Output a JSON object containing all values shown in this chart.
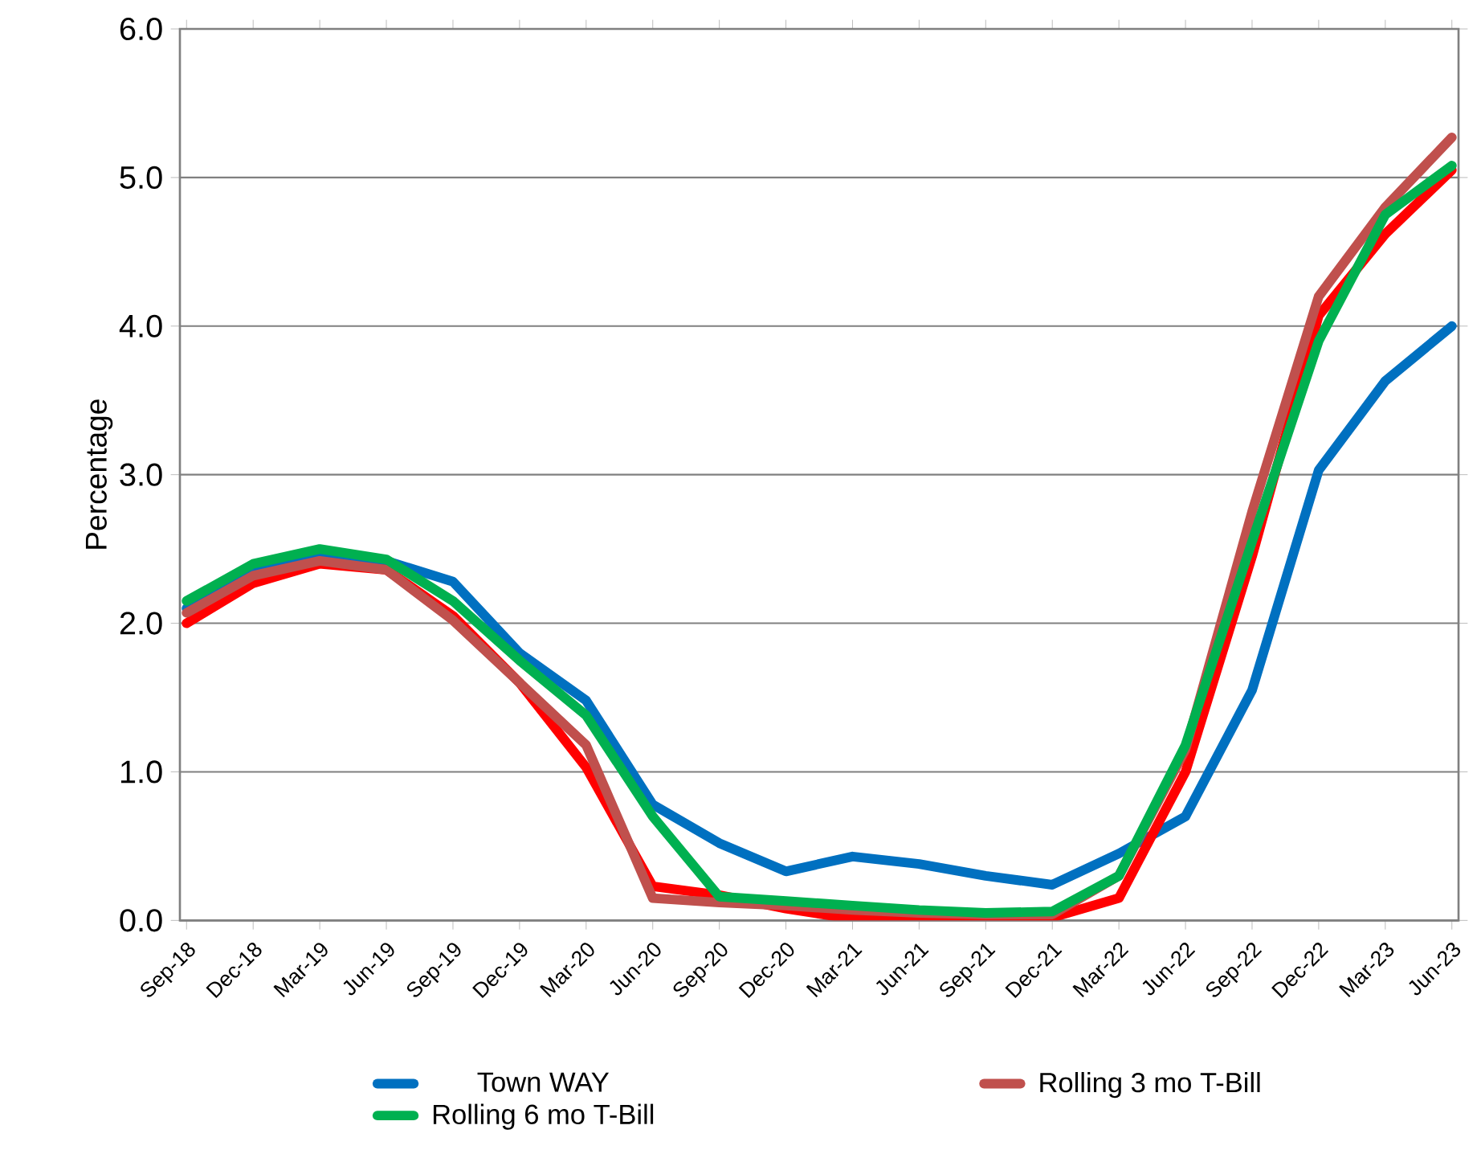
{
  "chart_data": {
    "type": "line",
    "ylabel": "Percentage",
    "categories": [
      "Sep-18",
      "Dec-18",
      "Mar-19",
      "Jun-19",
      "Sep-19",
      "Dec-19",
      "Mar-20",
      "Jun-20",
      "Sep-20",
      "Dec-20",
      "Mar-21",
      "Jun-21",
      "Sep-21",
      "Dec-21",
      "Mar-22",
      "Jun-22",
      "Sep-22",
      "Dec-22",
      "Mar-23",
      "Jun-23"
    ],
    "series": [
      {
        "name": "Town WAY",
        "color": "#0070c0",
        "values": [
          2.1,
          2.35,
          2.45,
          2.42,
          2.28,
          1.8,
          1.48,
          0.78,
          0.52,
          0.33,
          0.43,
          0.38,
          0.3,
          0.24,
          0.45,
          0.7,
          1.55,
          3.03,
          3.63,
          4.0
        ]
      },
      {
        "color": "#ff0000",
        "values": [
          2.0,
          2.27,
          2.4,
          2.36,
          2.05,
          1.6,
          1.03,
          0.23,
          0.17,
          0.08,
          0.01,
          0.01,
          0.01,
          0.02,
          0.15,
          1.0,
          2.45,
          4.07,
          4.62,
          5.05
        ]
      },
      {
        "name": "Rolling 3 mo T-Bill",
        "color": "#c0504d",
        "values": [
          2.07,
          2.32,
          2.42,
          2.36,
          2.02,
          1.6,
          1.18,
          0.15,
          0.12,
          0.1,
          0.07,
          0.05,
          0.04,
          0.04,
          0.3,
          1.15,
          2.75,
          4.2,
          4.8,
          5.27
        ]
      },
      {
        "name": "Rolling 6 mo T-Bill",
        "color": "#00b050",
        "values": [
          2.15,
          2.4,
          2.5,
          2.43,
          2.15,
          1.75,
          1.38,
          0.7,
          0.16,
          0.13,
          0.1,
          0.07,
          0.05,
          0.06,
          0.3,
          1.18,
          2.55,
          3.9,
          4.75,
          5.08
        ]
      }
    ],
    "ylim": [
      0,
      6
    ],
    "yticks": [
      {
        "value": 0,
        "label": "0.0"
      },
      {
        "value": 1,
        "label": "1.0"
      },
      {
        "value": 2,
        "label": "2.0"
      },
      {
        "value": 3,
        "label": "3.0"
      },
      {
        "value": 4,
        "label": "4.0"
      },
      {
        "value": 5,
        "label": "5.0"
      },
      {
        "value": 6,
        "label": "6.0"
      }
    ],
    "grid": "y",
    "legend": "bottom",
    "marker": "none",
    "line_style": "solid"
  }
}
